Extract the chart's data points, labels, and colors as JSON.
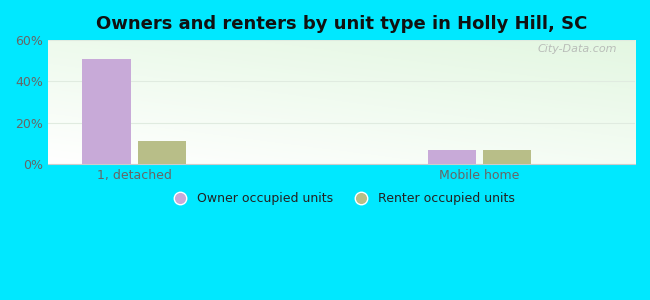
{
  "title": "Owners and renters by unit type in Holly Hill, SC",
  "categories": [
    "1, detached",
    "Mobile home"
  ],
  "owner_values": [
    51,
    7
  ],
  "renter_values": [
    11,
    7
  ],
  "owner_color": "#c8aad8",
  "renter_color": "#b8be88",
  "ylim": [
    0,
    60
  ],
  "yticks": [
    0,
    20,
    40,
    60
  ],
  "ytick_labels": [
    "0%",
    "20%",
    "40%",
    "60%"
  ],
  "outer_background": "#00e8ff",
  "plot_bg_color": "#eaf5e8",
  "title_fontsize": 13,
  "legend_labels": [
    "Owner occupied units",
    "Renter occupied units"
  ],
  "bar_width": 0.28,
  "group_positions": [
    0.5,
    2.5
  ],
  "xlim": [
    0,
    3.4
  ],
  "watermark": "City-Data.com",
  "tick_color": "#666666",
  "grid_color": "#e0ebe0"
}
